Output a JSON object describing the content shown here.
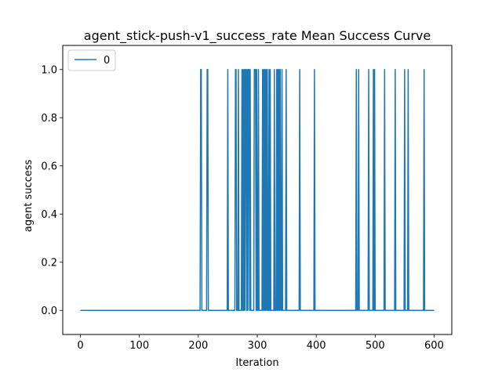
{
  "chart_data": {
    "type": "line",
    "title": "agent_stick-push-v1_success_rate Mean Success Curve",
    "xlabel": "Iteration",
    "ylabel": "agent success",
    "xlim": [
      -30,
      630
    ],
    "ylim": [
      -0.1,
      1.1
    ],
    "xticks": [
      0,
      100,
      200,
      300,
      400,
      500,
      600
    ],
    "yticks": [
      0.0,
      0.2,
      0.4,
      0.6,
      0.8,
      1.0
    ],
    "xtick_labels": [
      "0",
      "100",
      "200",
      "300",
      "400",
      "500",
      "600"
    ],
    "ytick_labels": [
      "0.0",
      "0.2",
      "0.4",
      "0.6",
      "0.8",
      "1.0"
    ],
    "grid": false,
    "legend": {
      "placement": "top-left",
      "entries": [
        "0"
      ]
    },
    "series": [
      {
        "name": "0",
        "color": "#1f77b4",
        "x_start": 0,
        "x_end": 600,
        "baseline": 0,
        "success_iterations": [
          204,
          205,
          215,
          216,
          250,
          263,
          264,
          268,
          274,
          276,
          278,
          280,
          281,
          283,
          285,
          286,
          288,
          295,
          296,
          297,
          299,
          302,
          309,
          311,
          313,
          315,
          317,
          320,
          322,
          329,
          333,
          335,
          337,
          339,
          342,
          349,
          372,
          397,
          468,
          472,
          489,
          497,
          499,
          516,
          534,
          550,
          556,
          583
        ]
      }
    ]
  }
}
